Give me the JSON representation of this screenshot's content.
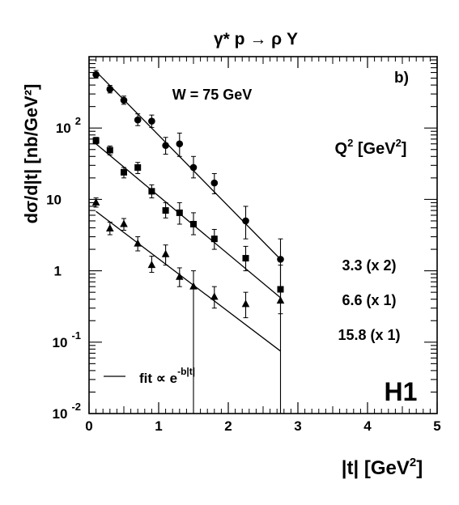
{
  "chart_data": {
    "type": "scatter",
    "title": "γ* p → ρ Y",
    "panel_label": "b)",
    "annotation": "W = 75 GeV",
    "experiment_label": "H1",
    "xlabel": "|t| [GeV²]",
    "ylabel": "dσ/d|t| [nb/GeV²]",
    "xlim": [
      0,
      5
    ],
    "ylim": [
      0.01,
      1000
    ],
    "yscale": "log",
    "x_ticks": [
      0,
      1,
      2,
      3,
      4,
      5
    ],
    "y_tick_labels": [
      {
        "value": 0.01,
        "base": "10",
        "exp": "-2"
      },
      {
        "value": 0.1,
        "base": "10",
        "exp": "-1"
      },
      {
        "value": 1,
        "base": "1",
        "exp": ""
      },
      {
        "value": 10,
        "base": "10",
        "exp": ""
      },
      {
        "value": 100,
        "base": "10",
        "exp": "2"
      }
    ],
    "legend_title": "Q² [GeV²]",
    "fit_legend": {
      "text": "fit ∝ e",
      "exp": "-b|t|"
    },
    "series": [
      {
        "name": "3.3 (x 2)",
        "marker": "circle",
        "points": [
          {
            "x": 0.1,
            "y": 560,
            "lo": 500,
            "hi": 640
          },
          {
            "x": 0.3,
            "y": 350,
            "lo": 310,
            "hi": 395
          },
          {
            "x": 0.5,
            "y": 245,
            "lo": 215,
            "hi": 280
          },
          {
            "x": 0.7,
            "y": 130,
            "lo": 108,
            "hi": 158
          },
          {
            "x": 0.9,
            "y": 125,
            "lo": 102,
            "hi": 152
          },
          {
            "x": 1.1,
            "y": 57,
            "lo": 43,
            "hi": 74
          },
          {
            "x": 1.3,
            "y": 60,
            "lo": 40,
            "hi": 85
          },
          {
            "x": 1.5,
            "y": 28,
            "lo": 20,
            "hi": 40
          },
          {
            "x": 1.8,
            "y": 17,
            "lo": 12,
            "hi": 23
          },
          {
            "x": 2.25,
            "y": 5,
            "lo": 2.8,
            "hi": 8
          },
          {
            "x": 2.75,
            "y": 1.45,
            "lo": 0.6,
            "hi": 2.8
          }
        ],
        "fit": {
          "x": [
            0.1,
            2.75
          ],
          "y": [
            620,
            1.45
          ]
        }
      },
      {
        "name": "6.6 (x 1)",
        "marker": "square",
        "points": [
          {
            "x": 0.1,
            "y": 67,
            "lo": 60,
            "hi": 74
          },
          {
            "x": 0.3,
            "y": 49,
            "lo": 42,
            "hi": 56
          },
          {
            "x": 0.5,
            "y": 24,
            "lo": 20,
            "hi": 28
          },
          {
            "x": 0.7,
            "y": 28,
            "lo": 23,
            "hi": 33
          },
          {
            "x": 0.9,
            "y": 13,
            "lo": 10.5,
            "hi": 16
          },
          {
            "x": 1.1,
            "y": 7,
            "lo": 5.5,
            "hi": 9
          },
          {
            "x": 1.3,
            "y": 6.5,
            "lo": 4.5,
            "hi": 9
          },
          {
            "x": 1.5,
            "y": 4.5,
            "lo": 3.2,
            "hi": 6.5
          },
          {
            "x": 1.8,
            "y": 2.8,
            "lo": 2,
            "hi": 3.8
          },
          {
            "x": 2.25,
            "y": 1.5,
            "lo": 1.0,
            "hi": 2.2
          },
          {
            "x": 2.75,
            "y": 0.55,
            "lo": 0.008,
            "hi": 1.2
          }
        ],
        "fit": {
          "x": [
            0.1,
            2.75
          ],
          "y": [
            60,
            0.42
          ]
        }
      },
      {
        "name": "15.8 (x 1)",
        "marker": "triangle",
        "points": [
          {
            "x": 0.1,
            "y": 9,
            "lo": 7.8,
            "hi": 10.5
          },
          {
            "x": 0.3,
            "y": 3.9,
            "lo": 3.2,
            "hi": 4.8
          },
          {
            "x": 0.5,
            "y": 4.5,
            "lo": 3.7,
            "hi": 5.4
          },
          {
            "x": 0.7,
            "y": 2.4,
            "lo": 1.9,
            "hi": 3.0
          },
          {
            "x": 0.9,
            "y": 1.2,
            "lo": 0.95,
            "hi": 1.6
          },
          {
            "x": 1.1,
            "y": 1.7,
            "lo": 1.2,
            "hi": 2.3
          },
          {
            "x": 1.3,
            "y": 0.82,
            "lo": 0.6,
            "hi": 1.1
          },
          {
            "x": 1.5,
            "y": 0.6,
            "lo": 0.008,
            "hi": 1.0
          },
          {
            "x": 1.8,
            "y": 0.43,
            "lo": 0.3,
            "hi": 0.6
          },
          {
            "x": 2.25,
            "y": 0.34,
            "lo": 0.22,
            "hi": 0.5
          },
          {
            "x": 2.75,
            "y": 0.38,
            "lo": 0.25,
            "hi": 0.55
          }
        ],
        "fit": {
          "x": [
            0.1,
            2.75
          ],
          "y": [
            6.8,
            0.075
          ]
        }
      }
    ]
  }
}
